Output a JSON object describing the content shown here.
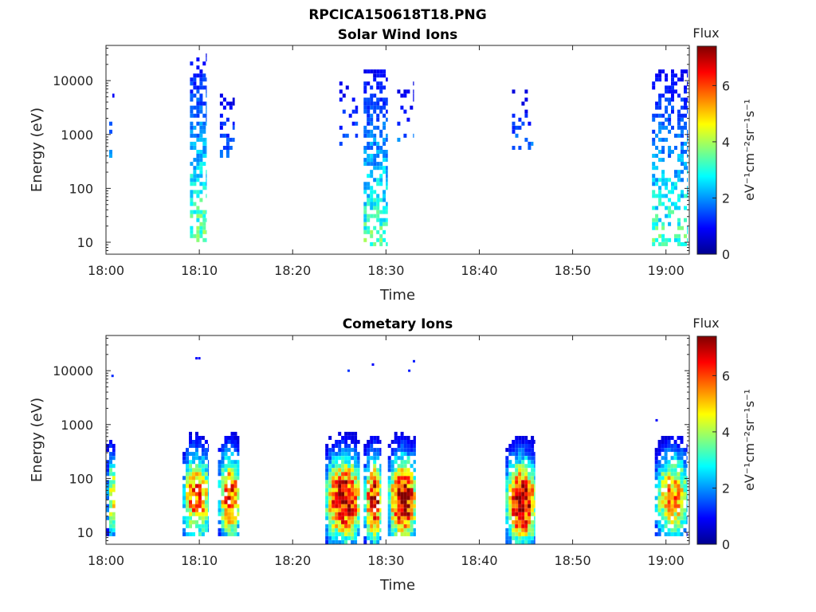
{
  "page": {
    "filename": "RPCICA150618T18.PNG"
  },
  "colors": {
    "colormap": [
      "#00008f",
      "#0000ff",
      "#0080ff",
      "#00ffff",
      "#80ff80",
      "#ffff00",
      "#ff8000",
      "#ff0000",
      "#800000"
    ],
    "axis": "#262626",
    "background": "#ffffff"
  },
  "chart_data": [
    {
      "type": "heatmap",
      "title": "Solar Wind Ions",
      "xlabel": "Time",
      "ylabel": "Energy (eV)",
      "y_scale": "log",
      "ylim": [
        6,
        45000
      ],
      "xlim": [
        "18:00",
        "19:02"
      ],
      "xlim_minutes": [
        0,
        62.5
      ],
      "x_ticks": [
        {
          "value": 0,
          "label": "18:00"
        },
        {
          "value": 10,
          "label": "18:10"
        },
        {
          "value": 20,
          "label": "18:20"
        },
        {
          "value": 30,
          "label": "18:30"
        },
        {
          "value": 40,
          "label": "18:40"
        },
        {
          "value": 50,
          "label": "18:50"
        },
        {
          "value": 60,
          "label": "19:00"
        }
      ],
      "y_ticks": [
        {
          "value": 10,
          "label": "10"
        },
        {
          "value": 100,
          "label": "100"
        },
        {
          "value": 1000,
          "label": "1000"
        },
        {
          "value": 10000,
          "label": "10000"
        }
      ],
      "colorbar": {
        "label": "Flux",
        "units": "eV⁻¹cm⁻²sr⁻¹s⁻¹",
        "range": [
          0,
          7.4
        ],
        "ticks": [
          {
            "value": 0,
            "label": "0"
          },
          {
            "value": 2,
            "label": "2"
          },
          {
            "value": 4,
            "label": "4"
          },
          {
            "value": 6,
            "label": "6"
          }
        ]
      },
      "bursts": [
        {
          "t_start": 0,
          "t_end": 0.9,
          "e_min": 350,
          "e_max": 18000,
          "peak": 2.0,
          "density": 0.12
        },
        {
          "t_start": 9.0,
          "t_end": 10.8,
          "e_min": 10,
          "e_max": 30000,
          "peak": 3.5,
          "density": 0.55
        },
        {
          "t_start": 12.2,
          "t_end": 13.8,
          "e_min": 400,
          "e_max": 8000,
          "peak": 1.8,
          "density": 0.3
        },
        {
          "t_start": 25.0,
          "t_end": 27.0,
          "e_min": 500,
          "e_max": 15000,
          "peak": 1.8,
          "density": 0.2
        },
        {
          "t_start": 27.6,
          "t_end": 30.2,
          "e_min": 8,
          "e_max": 15000,
          "peak": 3.4,
          "density": 0.55
        },
        {
          "t_start": 31.2,
          "t_end": 33.0,
          "e_min": 700,
          "e_max": 10000,
          "peak": 1.8,
          "density": 0.25
        },
        {
          "t_start": 43.5,
          "t_end": 45.8,
          "e_min": 500,
          "e_max": 8000,
          "peak": 1.8,
          "density": 0.28
        },
        {
          "t_start": 58.5,
          "t_end": 62.3,
          "e_min": 8,
          "e_max": 15000,
          "peak": 3.3,
          "density": 0.45
        }
      ]
    },
    {
      "type": "heatmap",
      "title": "Cometary Ions",
      "xlabel": "Time",
      "ylabel": "Energy (eV)",
      "y_scale": "log",
      "ylim": [
        6,
        45000
      ],
      "xlim": [
        "18:00",
        "19:02"
      ],
      "xlim_minutes": [
        0,
        62.5
      ],
      "x_ticks": [
        {
          "value": 0,
          "label": "18:00"
        },
        {
          "value": 10,
          "label": "18:10"
        },
        {
          "value": 20,
          "label": "18:20"
        },
        {
          "value": 30,
          "label": "18:30"
        },
        {
          "value": 40,
          "label": "18:40"
        },
        {
          "value": 50,
          "label": "18:50"
        },
        {
          "value": 60,
          "label": "19:00"
        }
      ],
      "y_ticks": [
        {
          "value": 10,
          "label": "10"
        },
        {
          "value": 100,
          "label": "100"
        },
        {
          "value": 1000,
          "label": "1000"
        },
        {
          "value": 10000,
          "label": "10000"
        }
      ],
      "colorbar": {
        "label": "Flux",
        "units": "eV⁻¹cm⁻²sr⁻¹s⁻¹",
        "range": [
          0,
          7.4
        ],
        "ticks": [
          {
            "value": 0,
            "label": "0"
          },
          {
            "value": 2,
            "label": "2"
          },
          {
            "value": 4,
            "label": "4"
          },
          {
            "value": 6,
            "label": "6"
          }
        ]
      },
      "bursts": [
        {
          "t_start": 0,
          "t_end": 1.0,
          "e_min": 8,
          "e_max": 900,
          "peak": 4.8,
          "center_e": 45,
          "density": 0.7
        },
        {
          "t_start": 8.2,
          "t_end": 11.0,
          "e_min": 8,
          "e_max": 2000,
          "peak": 6.0,
          "center_e": 45,
          "density": 0.7
        },
        {
          "t_start": 12.0,
          "t_end": 14.3,
          "e_min": 8,
          "e_max": 2500,
          "peak": 6.3,
          "center_e": 45,
          "density": 0.7
        },
        {
          "t_start": 23.5,
          "t_end": 27.2,
          "e_min": 6,
          "e_max": 1500,
          "peak": 7.3,
          "center_e": 40,
          "density": 0.85
        },
        {
          "t_start": 27.6,
          "t_end": 29.5,
          "e_min": 6,
          "e_max": 1000,
          "peak": 6.8,
          "center_e": 40,
          "density": 0.75
        },
        {
          "t_start": 30.2,
          "t_end": 33.2,
          "e_min": 8,
          "e_max": 900,
          "peak": 7.2,
          "center_e": 40,
          "density": 0.8
        },
        {
          "t_start": 42.8,
          "t_end": 46.0,
          "e_min": 6,
          "e_max": 2000,
          "peak": 7.4,
          "center_e": 35,
          "density": 0.85
        },
        {
          "t_start": 58.8,
          "t_end": 62.3,
          "e_min": 8,
          "e_max": 600,
          "peak": 5.5,
          "center_e": 45,
          "density": 0.65
        }
      ],
      "isolated_points": [
        {
          "t": 0.7,
          "e": 8000,
          "v": 1.2
        },
        {
          "t": 9.7,
          "e": 17000,
          "v": 0.9
        },
        {
          "t": 10.0,
          "e": 17000,
          "v": 0.9
        },
        {
          "t": 26.0,
          "e": 10000,
          "v": 1.3
        },
        {
          "t": 28.6,
          "e": 13000,
          "v": 0.9
        },
        {
          "t": 32.5,
          "e": 10000,
          "v": 1.1
        },
        {
          "t": 33.0,
          "e": 15000,
          "v": 1.1
        },
        {
          "t": 59.0,
          "e": 1200,
          "v": 0.9
        }
      ]
    }
  ]
}
